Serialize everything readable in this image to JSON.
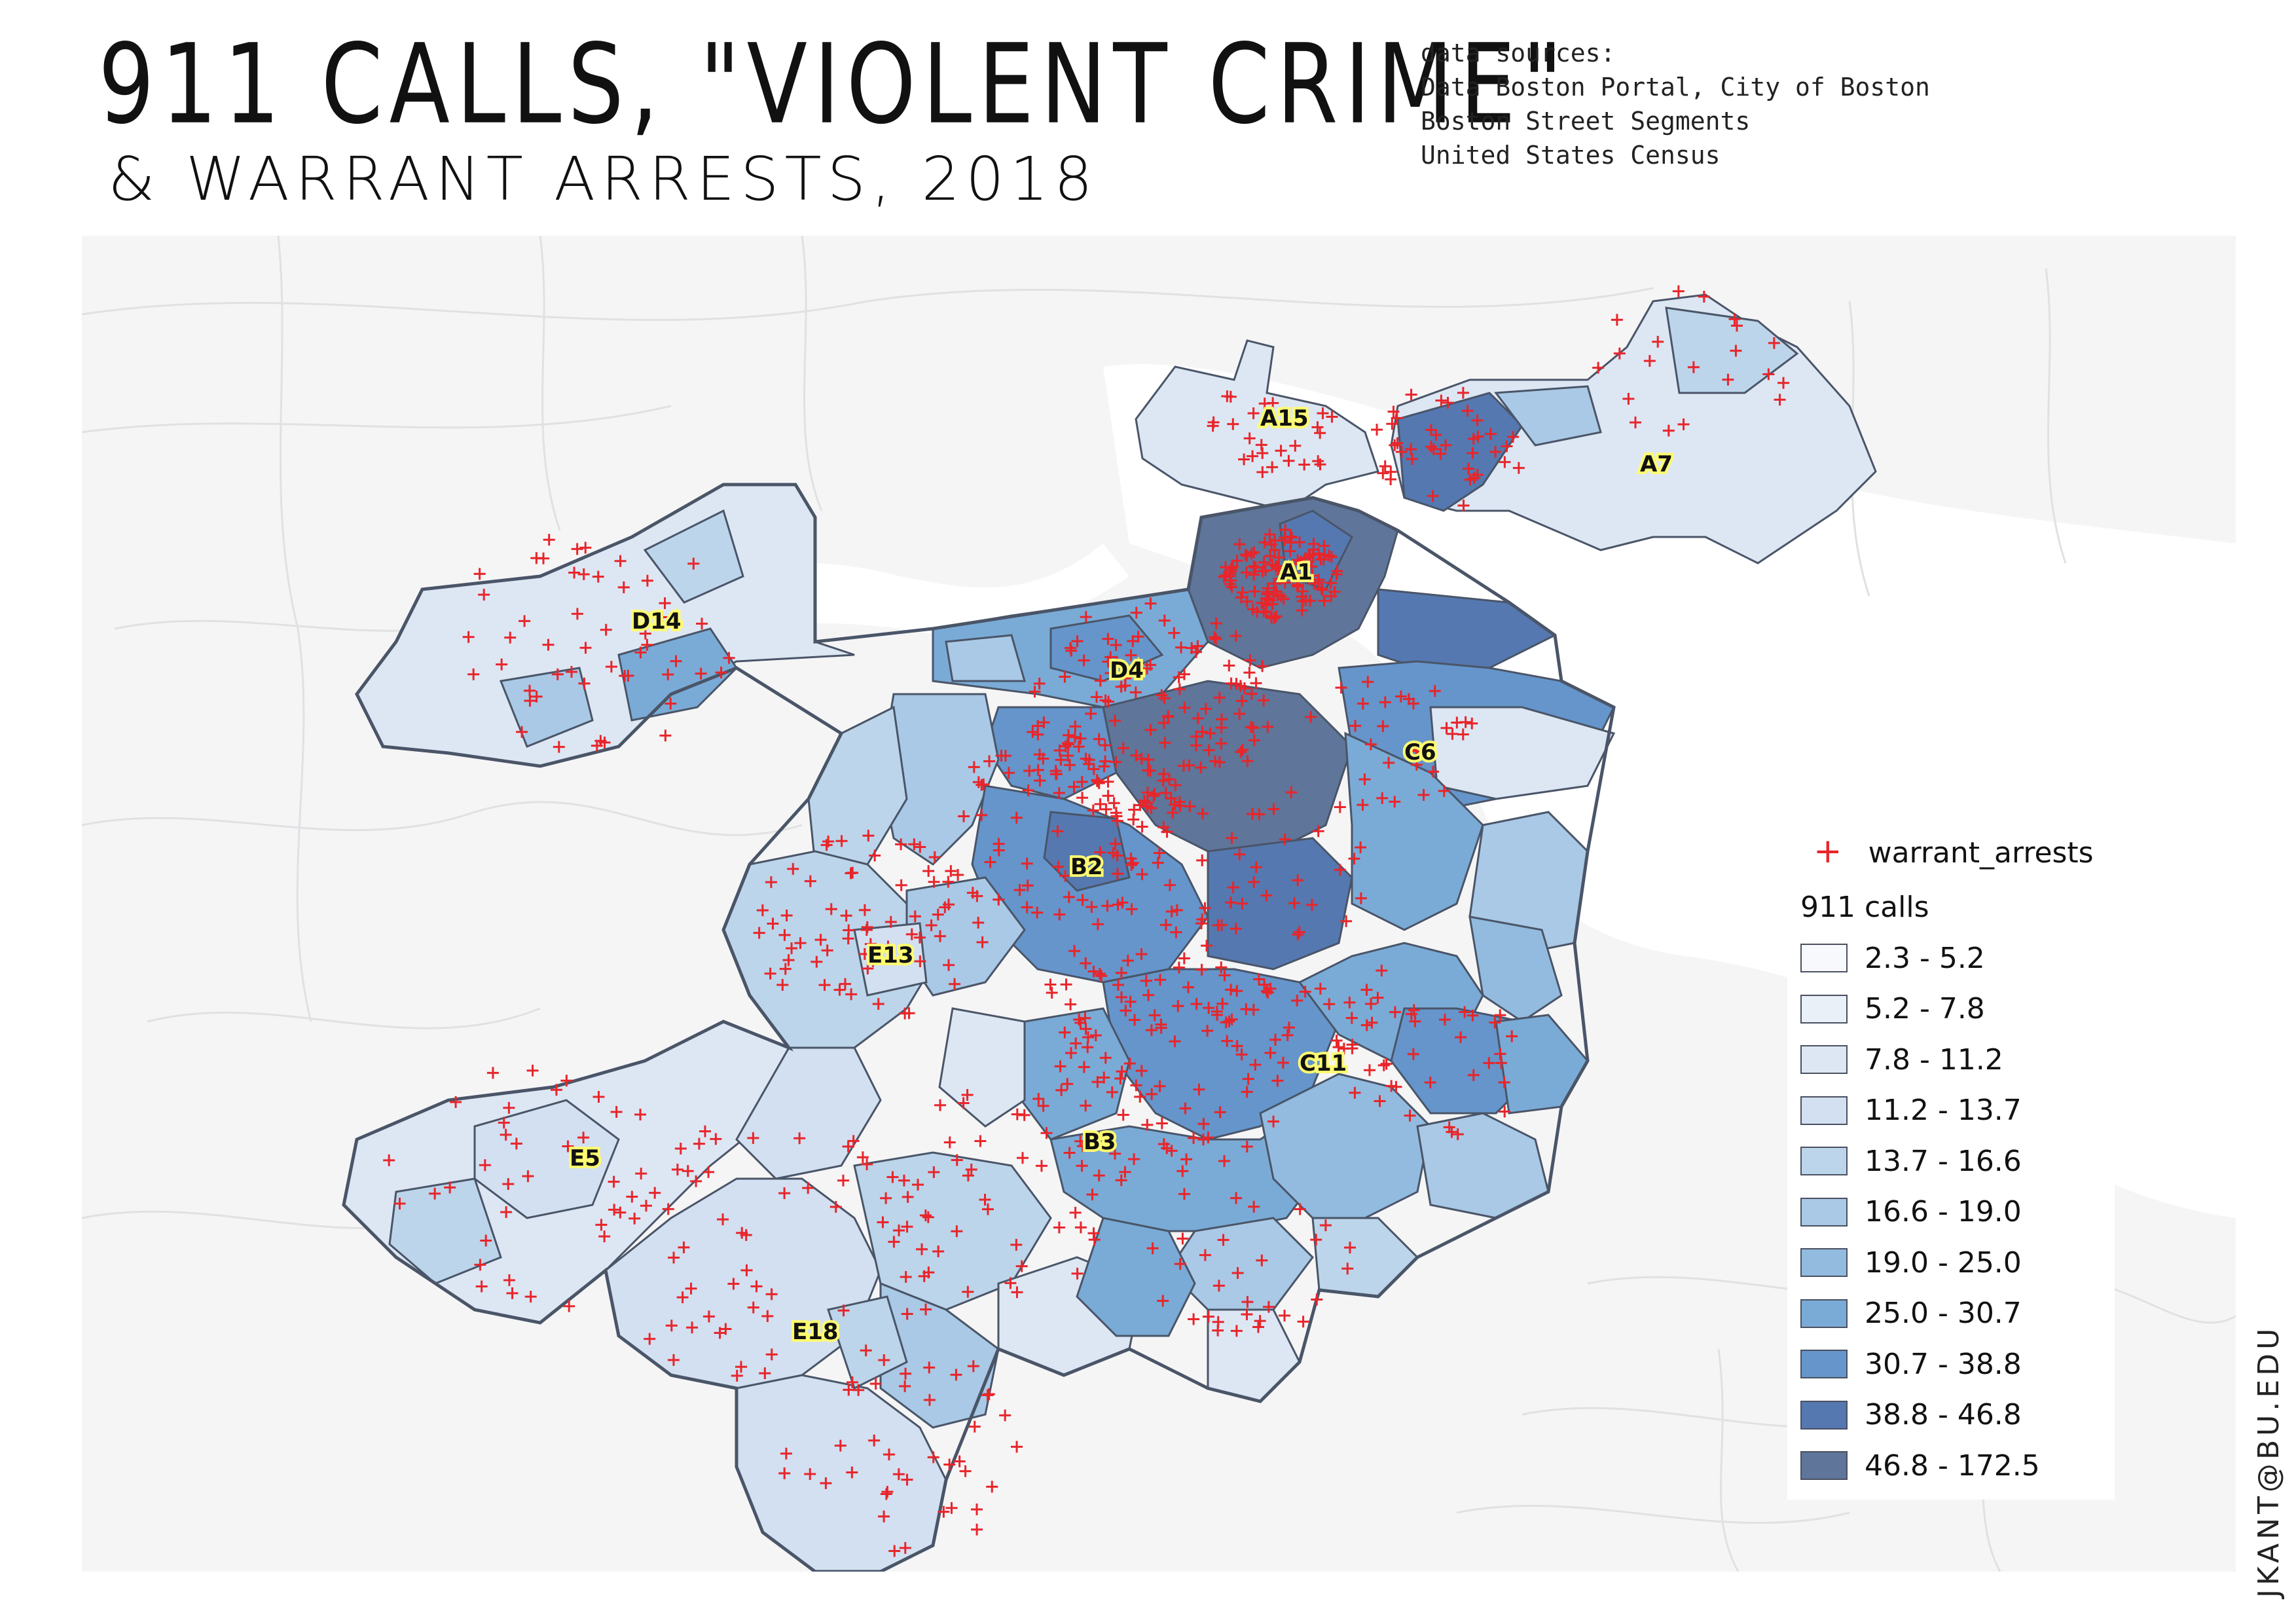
{
  "title": {
    "line1": "911 CALLS, \"VIOLENT CRIME\"",
    "line2": "& WARRANT ARRESTS, 2018"
  },
  "sources": {
    "heading": "data sources:",
    "items": [
      "Data Boston Portal, City of Boston",
      "Boston Street Segments",
      "United States Census"
    ]
  },
  "credit": "JKANT@BU.EDU",
  "legend": {
    "arrests_label": "warrant_arrests",
    "arrests_color": "#e8252a",
    "calls_title": "911 calls",
    "classes": [
      {
        "label": "2.3 - 5.2",
        "color": "#f7f9fc"
      },
      {
        "label": "5.2 - 7.8",
        "color": "#eaf0f7"
      },
      {
        "label": "7.8 - 11.2",
        "color": "#dde7f4"
      },
      {
        "label": "11.2 - 13.7",
        "color": "#d2e0f1"
      },
      {
        "label": "13.7 - 16.6",
        "color": "#bcd5ea"
      },
      {
        "label": "16.6 - 19.0",
        "color": "#a9c9e6"
      },
      {
        "label": "19.0 - 25.0",
        "color": "#92bbdf"
      },
      {
        "label": "25.0 - 30.7",
        "color": "#7aabd6"
      },
      {
        "label": "30.7 - 38.8",
        "color": "#6595cb"
      },
      {
        "label": "38.8 - 46.8",
        "color": "#5578b0"
      },
      {
        "label": "46.8 - 172.5",
        "color": "#5f759a"
      }
    ]
  },
  "districts": [
    "A15",
    "A7",
    "A1",
    "D14",
    "D4",
    "C6",
    "B2",
    "E13",
    "C11",
    "B3",
    "E5",
    "E18"
  ],
  "colors": {
    "background_land": "#f5f5f6",
    "water": "#ffffff",
    "street_lines": "#e1e1e4",
    "outline": "#4a5568",
    "label_halo": "#fffb70"
  }
}
